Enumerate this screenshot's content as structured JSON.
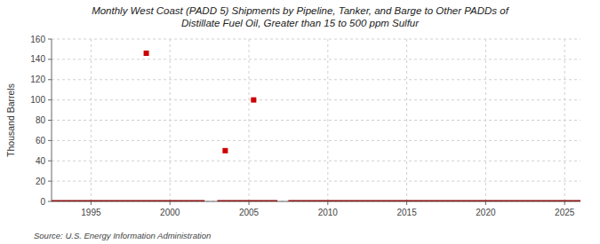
{
  "chart_data": {
    "type": "line",
    "title": "Monthly West Coast (PADD 5) Shipments by Pipeline, Tanker, and Barge to Other PADDs of\nDistillate Fuel Oil, Greater than 15 to 500 ppm Sulfur",
    "ylabel": "Thousand Barrels",
    "annotations": [
      "Source: U.S. Energy Information Administration"
    ],
    "xlim": [
      1992.5,
      2026
    ],
    "ylim": [
      0,
      160
    ],
    "xticks": [
      1995,
      2000,
      2005,
      2010,
      2015,
      2020,
      2025
    ],
    "yticks": [
      0,
      20,
      40,
      60,
      80,
      100,
      120,
      140,
      160
    ],
    "grid": true,
    "series": [
      {
        "type": "line",
        "color": "#8b1010",
        "x": [
          1992.5,
          2002.2,
          null,
          2003.0,
          2006.8,
          null,
          2007.5,
          2026
        ],
        "values": [
          0,
          0,
          null,
          0,
          0,
          null,
          0,
          0
        ]
      },
      {
        "type": "scatter",
        "color": "#cc0000",
        "marker": "square",
        "x": [
          1998.5,
          2003.5,
          2005.3
        ],
        "values": [
          146,
          50,
          100
        ]
      }
    ]
  }
}
